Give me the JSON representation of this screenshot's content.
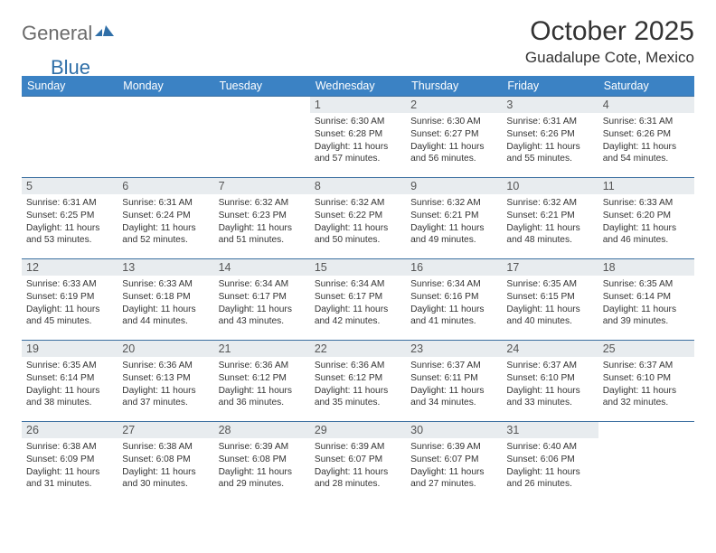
{
  "logo": {
    "part1": "General",
    "part2": "Blue"
  },
  "title": "October 2025",
  "location": "Guadalupe Cote, Mexico",
  "colors": {
    "header_bg": "#3b82c4",
    "header_text": "#ffffff",
    "daynum_bg": "#e8ecef",
    "border": "#3b6fa0",
    "logo_gray": "#6b6b6b",
    "logo_blue": "#2f6fa8",
    "logo_mark": "#2f6fa8"
  },
  "weekdays": [
    "Sunday",
    "Monday",
    "Tuesday",
    "Wednesday",
    "Thursday",
    "Friday",
    "Saturday"
  ],
  "days": [
    {
      "n": 1,
      "sr": "6:30 AM",
      "ss": "6:28 PM",
      "dh": 11,
      "dm": 57
    },
    {
      "n": 2,
      "sr": "6:30 AM",
      "ss": "6:27 PM",
      "dh": 11,
      "dm": 56
    },
    {
      "n": 3,
      "sr": "6:31 AM",
      "ss": "6:26 PM",
      "dh": 11,
      "dm": 55
    },
    {
      "n": 4,
      "sr": "6:31 AM",
      "ss": "6:26 PM",
      "dh": 11,
      "dm": 54
    },
    {
      "n": 5,
      "sr": "6:31 AM",
      "ss": "6:25 PM",
      "dh": 11,
      "dm": 53
    },
    {
      "n": 6,
      "sr": "6:31 AM",
      "ss": "6:24 PM",
      "dh": 11,
      "dm": 52
    },
    {
      "n": 7,
      "sr": "6:32 AM",
      "ss": "6:23 PM",
      "dh": 11,
      "dm": 51
    },
    {
      "n": 8,
      "sr": "6:32 AM",
      "ss": "6:22 PM",
      "dh": 11,
      "dm": 50
    },
    {
      "n": 9,
      "sr": "6:32 AM",
      "ss": "6:21 PM",
      "dh": 11,
      "dm": 49
    },
    {
      "n": 10,
      "sr": "6:32 AM",
      "ss": "6:21 PM",
      "dh": 11,
      "dm": 48
    },
    {
      "n": 11,
      "sr": "6:33 AM",
      "ss": "6:20 PM",
      "dh": 11,
      "dm": 46
    },
    {
      "n": 12,
      "sr": "6:33 AM",
      "ss": "6:19 PM",
      "dh": 11,
      "dm": 45
    },
    {
      "n": 13,
      "sr": "6:33 AM",
      "ss": "6:18 PM",
      "dh": 11,
      "dm": 44
    },
    {
      "n": 14,
      "sr": "6:34 AM",
      "ss": "6:17 PM",
      "dh": 11,
      "dm": 43
    },
    {
      "n": 15,
      "sr": "6:34 AM",
      "ss": "6:17 PM",
      "dh": 11,
      "dm": 42
    },
    {
      "n": 16,
      "sr": "6:34 AM",
      "ss": "6:16 PM",
      "dh": 11,
      "dm": 41
    },
    {
      "n": 17,
      "sr": "6:35 AM",
      "ss": "6:15 PM",
      "dh": 11,
      "dm": 40
    },
    {
      "n": 18,
      "sr": "6:35 AM",
      "ss": "6:14 PM",
      "dh": 11,
      "dm": 39
    },
    {
      "n": 19,
      "sr": "6:35 AM",
      "ss": "6:14 PM",
      "dh": 11,
      "dm": 38
    },
    {
      "n": 20,
      "sr": "6:36 AM",
      "ss": "6:13 PM",
      "dh": 11,
      "dm": 37
    },
    {
      "n": 21,
      "sr": "6:36 AM",
      "ss": "6:12 PM",
      "dh": 11,
      "dm": 36
    },
    {
      "n": 22,
      "sr": "6:36 AM",
      "ss": "6:12 PM",
      "dh": 11,
      "dm": 35
    },
    {
      "n": 23,
      "sr": "6:37 AM",
      "ss": "6:11 PM",
      "dh": 11,
      "dm": 34
    },
    {
      "n": 24,
      "sr": "6:37 AM",
      "ss": "6:10 PM",
      "dh": 11,
      "dm": 33
    },
    {
      "n": 25,
      "sr": "6:37 AM",
      "ss": "6:10 PM",
      "dh": 11,
      "dm": 32
    },
    {
      "n": 26,
      "sr": "6:38 AM",
      "ss": "6:09 PM",
      "dh": 11,
      "dm": 31
    },
    {
      "n": 27,
      "sr": "6:38 AM",
      "ss": "6:08 PM",
      "dh": 11,
      "dm": 30
    },
    {
      "n": 28,
      "sr": "6:39 AM",
      "ss": "6:08 PM",
      "dh": 11,
      "dm": 29
    },
    {
      "n": 29,
      "sr": "6:39 AM",
      "ss": "6:07 PM",
      "dh": 11,
      "dm": 28
    },
    {
      "n": 30,
      "sr": "6:39 AM",
      "ss": "6:07 PM",
      "dh": 11,
      "dm": 27
    },
    {
      "n": 31,
      "sr": "6:40 AM",
      "ss": "6:06 PM",
      "dh": 11,
      "dm": 26
    }
  ],
  "first_weekday_index": 3,
  "labels": {
    "sunrise": "Sunrise:",
    "sunset": "Sunset:",
    "daylight": "Daylight:",
    "hours": "hours",
    "and": "and",
    "minutes": "minutes."
  }
}
